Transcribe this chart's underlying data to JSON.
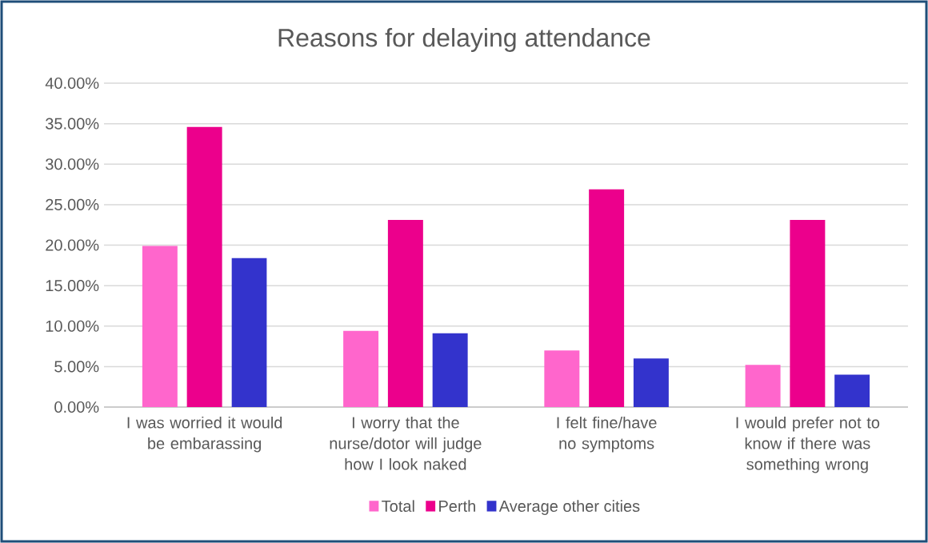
{
  "chart_data": {
    "type": "bar",
    "title": "Reasons for delaying attendance",
    "categories": [
      "I was worried it would be embarassing",
      "I worry that the nurse/dotor will judge how I look naked",
      "I felt fine/have no symptoms",
      "I would prefer not to know if there was something wrong"
    ],
    "series": [
      {
        "name": "Total",
        "color": "#ff66cc",
        "values": [
          19.9,
          9.4,
          7.0,
          5.2
        ]
      },
      {
        "name": "Perth",
        "color": "#ec008c",
        "values": [
          34.6,
          23.1,
          26.9,
          23.1
        ]
      },
      {
        "name": "Average other cities",
        "color": "#3333cc",
        "values": [
          18.4,
          9.1,
          6.0,
          4.0
        ]
      }
    ],
    "ylim": [
      0,
      40
    ],
    "yticks": [
      {
        "value": 0,
        "label": "0.00%"
      },
      {
        "value": 5,
        "label": "5.00%"
      },
      {
        "value": 10,
        "label": "10.00%"
      },
      {
        "value": 15,
        "label": "15.00%"
      },
      {
        "value": 20,
        "label": "20.00%"
      },
      {
        "value": 25,
        "label": "25.00%"
      },
      {
        "value": 30,
        "label": "30.00%"
      },
      {
        "value": 35,
        "label": "35.00%"
      },
      {
        "value": 40,
        "label": "40.00%"
      }
    ],
    "grid": "y",
    "legend": "bottom"
  }
}
